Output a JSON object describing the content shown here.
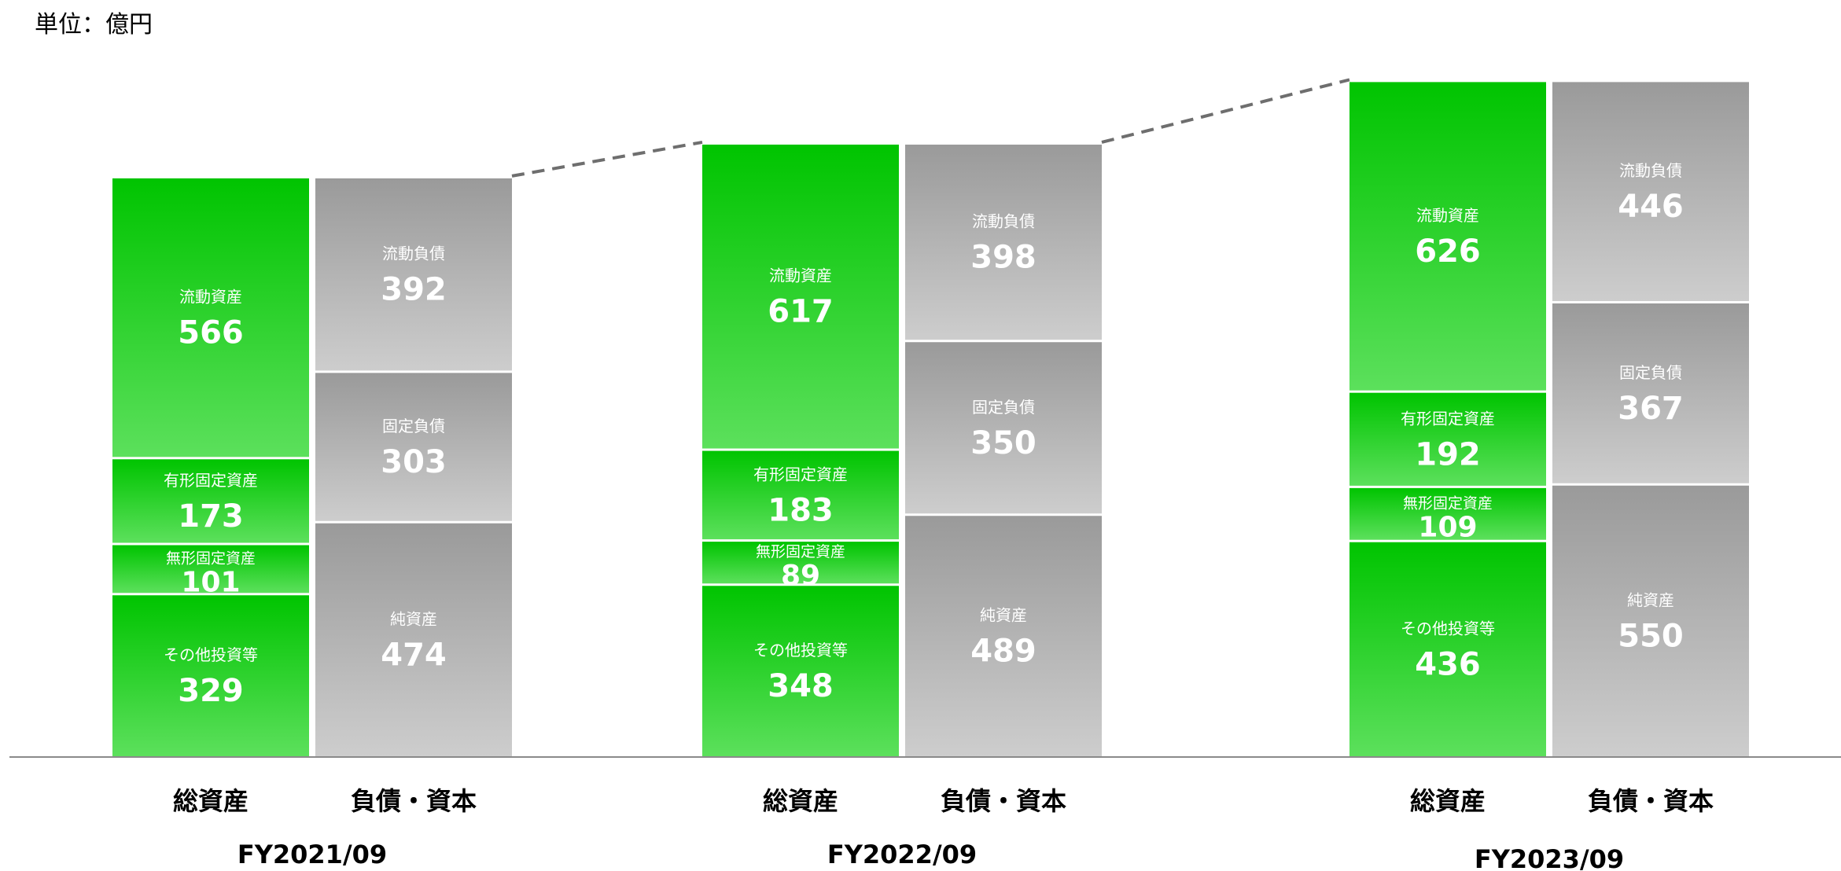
{
  "unit_label": "単位：億円",
  "colors": {
    "assets_top": "#00c400",
    "assets_bottom": "#5ce05c",
    "liab_top": "#9a9a9a",
    "liab_bottom": "#cdcdcd",
    "dashed_line": "#6e6e6e",
    "baseline": "#8a8a8a"
  },
  "chart_data": {
    "type": "bar",
    "stacked": true,
    "title": "",
    "xlabel": "",
    "ylabel": "",
    "categories": [
      "FY2021/09",
      "FY2022/09",
      "FY2023/09"
    ],
    "bar_labels": [
      "総資産",
      "負債・資本"
    ],
    "groups": [
      {
        "period": "FY2021/09",
        "assets": [
          {
            "label": "その他投資等",
            "value": 329
          },
          {
            "label": "無形固定資産",
            "value": 101
          },
          {
            "label": "有形固定資産",
            "value": 173
          },
          {
            "label": "流動資産",
            "value": 566
          }
        ],
        "liabilities_equity": [
          {
            "label": "純資産",
            "value": 474
          },
          {
            "label": "固定負債",
            "value": 303
          },
          {
            "label": "流動負債",
            "value": 392
          }
        ]
      },
      {
        "period": "FY2022/09",
        "assets": [
          {
            "label": "その他投資等",
            "value": 348
          },
          {
            "label": "無形固定資産",
            "value": 89
          },
          {
            "label": "有形固定資産",
            "value": 183
          },
          {
            "label": "流動資産",
            "value": 617
          }
        ],
        "liabilities_equity": [
          {
            "label": "純資産",
            "value": 489
          },
          {
            "label": "固定負債",
            "value": 350
          },
          {
            "label": "流動負債",
            "value": 398
          }
        ]
      },
      {
        "period": "FY2023/09",
        "assets": [
          {
            "label": "その他投資等",
            "value": 436
          },
          {
            "label": "無形固定資産",
            "value": 109
          },
          {
            "label": "有形固定資産",
            "value": 192
          },
          {
            "label": "流動資産",
            "value": 626
          }
        ],
        "liabilities_equity": [
          {
            "label": "純資産",
            "value": 550
          },
          {
            "label": "固定負債",
            "value": 367
          },
          {
            "label": "流動負債",
            "value": 446
          }
        ]
      }
    ]
  }
}
